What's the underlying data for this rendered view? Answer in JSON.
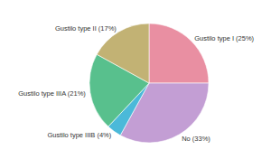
{
  "chart_data": {
    "type": "pie",
    "categories": [
      "Gustilo type I",
      "No",
      "Gustilo type IIIB",
      "Gustilo type IIIA",
      "Gustilo type II"
    ],
    "values": [
      25,
      33,
      4,
      21,
      17
    ],
    "value_labels": [
      "(25%)",
      "(33%)",
      "(4%)",
      "(21%)",
      "(17%)"
    ],
    "colors": [
      "#e98fa2",
      "#c39ed4",
      "#4bb9d9",
      "#58c08d",
      "#c2b274"
    ],
    "data_labels": true
  }
}
